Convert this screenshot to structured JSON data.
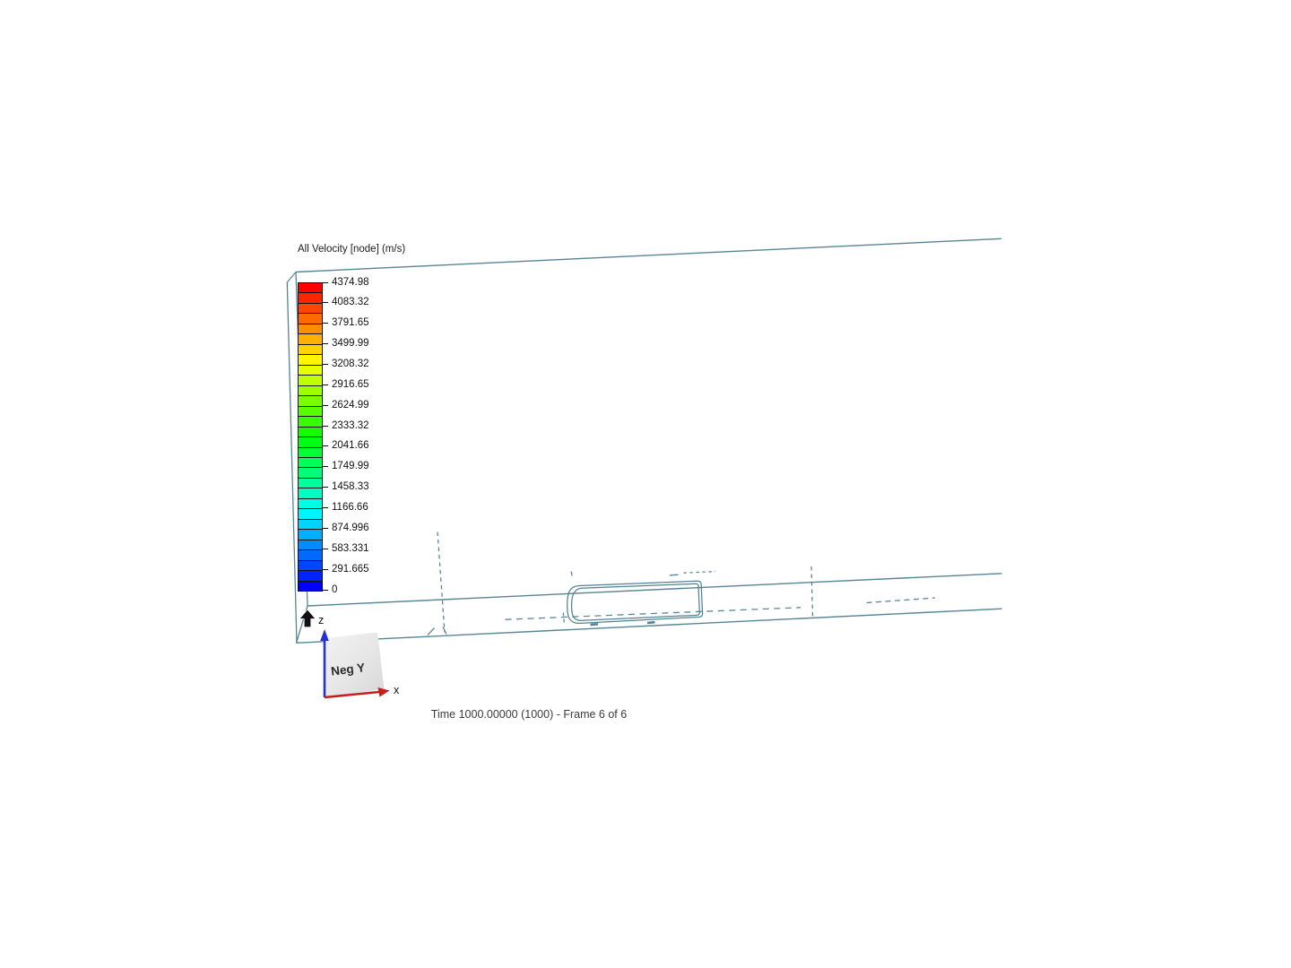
{
  "window": {
    "background": "#ffffff"
  },
  "legend": {
    "title": "All Velocity [node] (m/s)",
    "tick_labels": [
      "4374.98",
      "4083.32",
      "3791.65",
      "3499.99",
      "3208.32",
      "2916.65",
      "2624.99",
      "2333.32",
      "2041.66",
      "1749.99",
      "1458.33",
      "1166.66",
      "874.996",
      "583.331",
      "291.665",
      "0"
    ],
    "value_max": 4374.98,
    "value_min": 0,
    "segment_count": 30,
    "colormap": "rainbow red-to-blue"
  },
  "viewport": {
    "time_annotation": "Time 1000.00000 (1000) - Frame 6 of 6",
    "wireframe_color": "#4a7b8c"
  },
  "triad": {
    "view_face_label": "Neg Y",
    "x_axis_label": "x",
    "z_axis_label": "z",
    "x_axis_color": "#c81d1d",
    "z_axis_color": "#2433cf"
  }
}
